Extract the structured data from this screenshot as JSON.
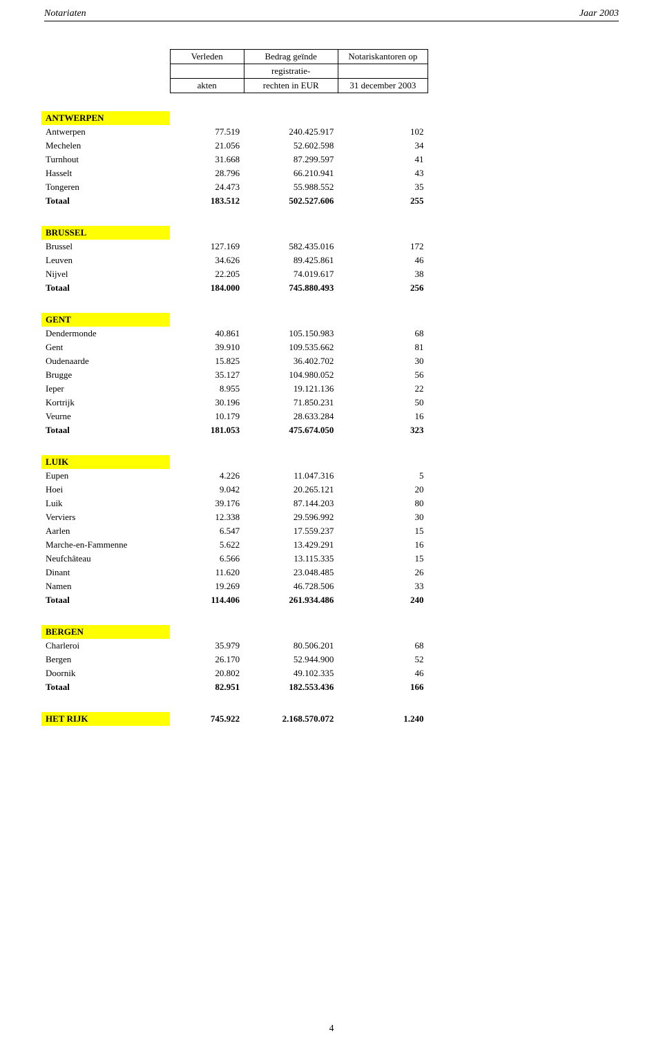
{
  "header": {
    "left": "Notariaten",
    "right": "Jaar 2003"
  },
  "table_header": {
    "row1": {
      "c2": "Verleden",
      "c3": "Bedrag geïnde",
      "c4": "Notariskantoren op"
    },
    "row2": {
      "c3": "registratie-"
    },
    "row3": {
      "c2": "akten",
      "c3": "rechten in EUR",
      "c4": "31 december 2003"
    }
  },
  "sections": [
    {
      "title": "ANTWERPEN",
      "rows": [
        {
          "name": "Antwerpen",
          "v1": "77.519",
          "v2": "240.425.917",
          "v3": "102"
        },
        {
          "name": "Mechelen",
          "v1": "21.056",
          "v2": "52.602.598",
          "v3": "34"
        },
        {
          "name": "Turnhout",
          "v1": "31.668",
          "v2": "87.299.597",
          "v3": "41"
        },
        {
          "name": "Hasselt",
          "v1": "28.796",
          "v2": "66.210.941",
          "v3": "43"
        },
        {
          "name": "Tongeren",
          "v1": "24.473",
          "v2": "55.988.552",
          "v3": "35"
        }
      ],
      "total": {
        "name": "Totaal",
        "v1": "183.512",
        "v2": "502.527.606",
        "v3": "255"
      }
    },
    {
      "title": "BRUSSEL",
      "rows": [
        {
          "name": "Brussel",
          "v1": "127.169",
          "v2": "582.435.016",
          "v3": "172"
        },
        {
          "name": "Leuven",
          "v1": "34.626",
          "v2": "89.425.861",
          "v3": "46"
        },
        {
          "name": "Nijvel",
          "v1": "22.205",
          "v2": "74.019.617",
          "v3": "38"
        }
      ],
      "total": {
        "name": "Totaal",
        "v1": "184.000",
        "v2": "745.880.493",
        "v3": "256"
      }
    },
    {
      "title": "GENT",
      "rows": [
        {
          "name": "Dendermonde",
          "v1": "40.861",
          "v2": "105.150.983",
          "v3": "68"
        },
        {
          "name": "Gent",
          "v1": "39.910",
          "v2": "109.535.662",
          "v3": "81"
        },
        {
          "name": "Oudenaarde",
          "v1": "15.825",
          "v2": "36.402.702",
          "v3": "30"
        },
        {
          "name": "Brugge",
          "v1": "35.127",
          "v2": "104.980.052",
          "v3": "56"
        },
        {
          "name": "Ieper",
          "v1": "8.955",
          "v2": "19.121.136",
          "v3": "22"
        },
        {
          "name": "Kortrijk",
          "v1": "30.196",
          "v2": "71.850.231",
          "v3": "50"
        },
        {
          "name": "Veurne",
          "v1": "10.179",
          "v2": "28.633.284",
          "v3": "16"
        }
      ],
      "total": {
        "name": "Totaal",
        "v1": "181.053",
        "v2": "475.674.050",
        "v3": "323"
      }
    },
    {
      "title": "LUIK",
      "rows": [
        {
          "name": "Eupen",
          "v1": "4.226",
          "v2": "11.047.316",
          "v3": "5"
        },
        {
          "name": "Hoei",
          "v1": "9.042",
          "v2": "20.265.121",
          "v3": "20"
        },
        {
          "name": "Luik",
          "v1": "39.176",
          "v2": "87.144.203",
          "v3": "80"
        },
        {
          "name": "Verviers",
          "v1": "12.338",
          "v2": "29.596.992",
          "v3": "30"
        },
        {
          "name": "Aarlen",
          "v1": "6.547",
          "v2": "17.559.237",
          "v3": "15"
        },
        {
          "name": "Marche-en-Fammenne",
          "v1": "5.622",
          "v2": "13.429.291",
          "v3": "16"
        },
        {
          "name": "Neufchâteau",
          "v1": "6.566",
          "v2": "13.115.335",
          "v3": "15"
        },
        {
          "name": "Dinant",
          "v1": "11.620",
          "v2": "23.048.485",
          "v3": "26"
        },
        {
          "name": "Namen",
          "v1": "19.269",
          "v2": "46.728.506",
          "v3": "33"
        }
      ],
      "total": {
        "name": "Totaal",
        "v1": "114.406",
        "v2": "261.934.486",
        "v3": "240"
      }
    },
    {
      "title": "BERGEN",
      "rows": [
        {
          "name": "Charleroi",
          "v1": "35.979",
          "v2": "80.506.201",
          "v3": "68"
        },
        {
          "name": "Bergen",
          "v1": "26.170",
          "v2": "52.944.900",
          "v3": "52"
        },
        {
          "name": "Doornik",
          "v1": "20.802",
          "v2": "49.102.335",
          "v3": "46"
        }
      ],
      "total": {
        "name": "Totaal",
        "v1": "82.951",
        "v2": "182.553.436",
        "v3": "166"
      }
    }
  ],
  "grand_total": {
    "name": "HET RIJK",
    "v1": "745.922",
    "v2": "2.168.570.072",
    "v3": "1.240"
  },
  "page_number": "4"
}
